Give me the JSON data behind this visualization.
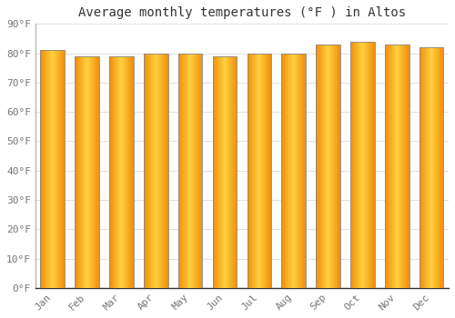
{
  "title": "Average monthly temperatures (°F ) in Altos",
  "months": [
    "Jan",
    "Feb",
    "Mar",
    "Apr",
    "May",
    "Jun",
    "Jul",
    "Aug",
    "Sep",
    "Oct",
    "Nov",
    "Dec"
  ],
  "values": [
    81,
    79,
    79,
    80,
    80,
    79,
    80,
    80,
    83,
    84,
    83,
    82
  ],
  "bar_center_color": "#FFD040",
  "bar_edge_color": "#F0900A",
  "bar_border_color": "#888888",
  "background_color": "#FFFFFF",
  "grid_color": "#E0E0E0",
  "text_color": "#777777",
  "ylim": [
    0,
    90
  ],
  "yticks": [
    0,
    10,
    20,
    30,
    40,
    50,
    60,
    70,
    80,
    90
  ],
  "ytick_labels": [
    "0°F",
    "10°F",
    "20°F",
    "30°F",
    "40°F",
    "50°F",
    "60°F",
    "70°F",
    "80°F",
    "90°F"
  ],
  "title_fontsize": 10,
  "tick_fontsize": 8,
  "font_family": "monospace",
  "bar_width": 0.7,
  "n_gradient_strips": 40
}
